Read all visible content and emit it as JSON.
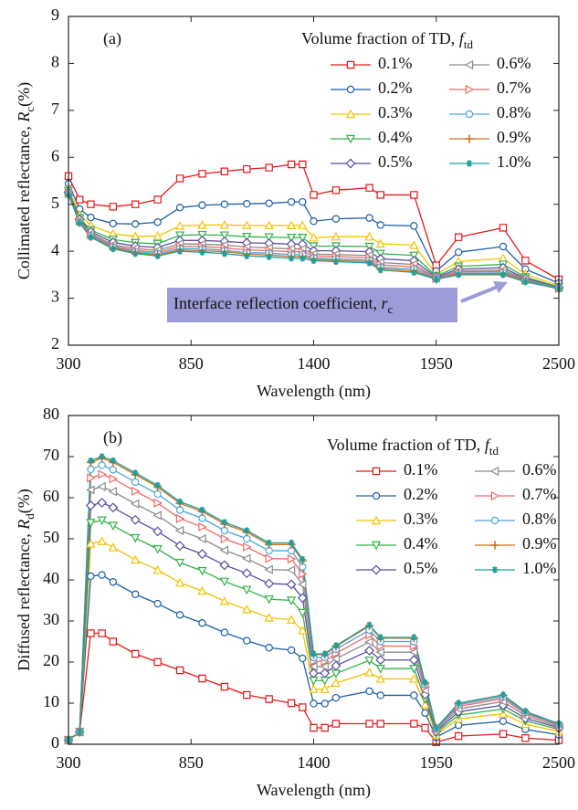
{
  "chart_data": [
    {
      "type": "line",
      "label": "(a)",
      "xlabel": "Wavelength (nm)",
      "ylabel": "Collimated reflectance, ",
      "ylabel_symbol": "R",
      "ylabel_subscript": "c",
      "ylabel_unit": "(%)",
      "legend_title": "Volume fraction of TD, ",
      "legend_symbol": "f",
      "legend_subscript": "td",
      "annotation": "Interface reflection coefficient, ",
      "annotation_symbol": "r",
      "annotation_subscript": "c",
      "xlim": [
        300,
        2500
      ],
      "xticks": [
        300,
        850,
        1400,
        1950,
        2500
      ],
      "ylim": [
        2,
        9
      ],
      "yticks": [
        2,
        3,
        4,
        5,
        6,
        7,
        8,
        9
      ],
      "x": [
        300,
        350,
        400,
        500,
        600,
        700,
        800,
        900,
        1000,
        1100,
        1200,
        1300,
        1350,
        1400,
        1500,
        1650,
        1700,
        1850,
        1950,
        2050,
        2250,
        2350,
        2500
      ],
      "series": [
        {
          "name": "0.1%",
          "color": "#e3191c",
          "marker": "square",
          "values": [
            5.6,
            5.1,
            5.0,
            4.95,
            5.0,
            5.1,
            5.55,
            5.65,
            5.7,
            5.75,
            5.78,
            5.85,
            5.85,
            5.2,
            5.3,
            5.35,
            5.2,
            5.2,
            3.7,
            4.3,
            4.5,
            3.8,
            3.4
          ]
        },
        {
          "name": "0.2%",
          "color": "#1f5fa6",
          "marker": "circle",
          "values": [
            5.44,
            4.9,
            4.72,
            4.59,
            4.58,
            4.62,
            4.93,
            4.98,
            5.0,
            5.01,
            5.02,
            5.05,
            5.05,
            4.64,
            4.69,
            4.71,
            4.56,
            4.54,
            3.58,
            3.98,
            4.1,
            3.62,
            3.32
          ]
        },
        {
          "name": "0.3%",
          "color": "#f2c200",
          "marker": "triangle-up",
          "values": [
            5.34,
            4.78,
            4.55,
            4.37,
            4.32,
            4.32,
            4.54,
            4.56,
            4.56,
            4.55,
            4.55,
            4.55,
            4.55,
            4.29,
            4.31,
            4.31,
            4.16,
            4.13,
            3.51,
            3.78,
            3.85,
            3.51,
            3.27
          ]
        },
        {
          "name": "0.4%",
          "color": "#33b24a",
          "marker": "triangle-down",
          "values": [
            5.29,
            4.71,
            4.45,
            4.25,
            4.18,
            4.16,
            4.34,
            4.35,
            4.34,
            4.31,
            4.3,
            4.29,
            4.29,
            4.11,
            4.11,
            4.1,
            3.95,
            3.91,
            3.47,
            3.68,
            3.72,
            3.45,
            3.24
          ]
        },
        {
          "name": "0.5%",
          "color": "#5b4ea0",
          "marker": "diamond",
          "values": [
            5.26,
            4.68,
            4.41,
            4.19,
            4.11,
            4.08,
            4.23,
            4.23,
            4.21,
            4.18,
            4.17,
            4.15,
            4.15,
            4.01,
            4.01,
            3.99,
            3.84,
            3.8,
            3.45,
            3.62,
            3.65,
            3.42,
            3.23
          ]
        },
        {
          "name": "0.6%",
          "color": "#8c8c8c",
          "marker": "triangle-left",
          "values": [
            5.24,
            4.65,
            4.37,
            4.14,
            4.06,
            4.02,
            4.16,
            4.15,
            4.13,
            4.09,
            4.07,
            4.05,
            4.05,
            3.94,
            3.93,
            3.91,
            3.76,
            3.72,
            3.43,
            3.58,
            3.6,
            3.4,
            3.22
          ]
        },
        {
          "name": "0.7%",
          "color": "#f06a6a",
          "marker": "triangle-right",
          "values": [
            5.23,
            4.64,
            4.35,
            4.11,
            4.02,
            3.98,
            4.11,
            4.1,
            4.07,
            4.03,
            4.01,
            3.99,
            3.99,
            3.9,
            3.89,
            3.86,
            3.71,
            3.67,
            3.42,
            3.56,
            3.57,
            3.38,
            3.21
          ]
        },
        {
          "name": "0.8%",
          "color": "#4ea6dc",
          "marker": "circle",
          "values": [
            5.22,
            4.62,
            4.33,
            4.09,
            3.99,
            3.95,
            4.06,
            4.05,
            4.02,
            3.97,
            3.96,
            3.93,
            3.93,
            3.86,
            3.84,
            3.81,
            3.66,
            3.62,
            3.41,
            3.53,
            3.54,
            3.37,
            3.21
          ]
        },
        {
          "name": "0.9%",
          "color": "#d0711c",
          "marker": "plus",
          "values": [
            5.21,
            4.61,
            4.31,
            4.07,
            3.97,
            3.92,
            4.03,
            4.01,
            3.99,
            3.94,
            3.92,
            3.89,
            3.89,
            3.83,
            3.81,
            3.78,
            3.63,
            3.58,
            3.4,
            3.52,
            3.52,
            3.36,
            3.2
          ]
        },
        {
          "name": "1.0%",
          "color": "#1f9e9a",
          "marker": "star",
          "values": [
            5.2,
            4.6,
            4.3,
            4.05,
            3.95,
            3.9,
            4.0,
            3.98,
            3.95,
            3.9,
            3.88,
            3.85,
            3.85,
            3.8,
            3.78,
            3.75,
            3.6,
            3.55,
            3.4,
            3.5,
            3.5,
            3.35,
            3.2
          ]
        }
      ]
    },
    {
      "type": "line",
      "label": "(b)",
      "xlabel": "Wavelength (nm)",
      "ylabel": "Diffused reflectance, ",
      "ylabel_symbol": "R",
      "ylabel_subscript": "d",
      "ylabel_unit": "(%)",
      "legend_title": "Volume fraction of TD, ",
      "legend_symbol": "f",
      "legend_subscript": "td",
      "xlim": [
        300,
        2500
      ],
      "xticks": [
        300,
        850,
        1400,
        1950,
        2500
      ],
      "ylim": [
        0,
        80
      ],
      "yticks": [
        0,
        10,
        20,
        30,
        40,
        50,
        60,
        70,
        80
      ],
      "x": [
        300,
        350,
        400,
        450,
        500,
        600,
        700,
        800,
        900,
        1000,
        1100,
        1200,
        1300,
        1350,
        1400,
        1450,
        1500,
        1650,
        1700,
        1850,
        1900,
        1950,
        2050,
        2250,
        2350,
        2500
      ],
      "series": [
        {
          "name": "0.1%",
          "color": "#e3191c",
          "marker": "square",
          "values": [
            1,
            3,
            27,
            27,
            25,
            22,
            20,
            18,
            16,
            14,
            12,
            11,
            10,
            9,
            4,
            4,
            5,
            5,
            5,
            5,
            4,
            0.5,
            2,
            2.5,
            1.5,
            1
          ]
        },
        {
          "name": "0.2%",
          "color": "#1f5fa6",
          "marker": "circle",
          "values": [
            1,
            3,
            40.9,
            41.2,
            39.5,
            36.5,
            34.2,
            31.5,
            29.5,
            27.2,
            25.2,
            23.5,
            22.9,
            20.9,
            9.9,
            9.9,
            11.3,
            12.9,
            11.9,
            11.9,
            7.6,
            1.7,
            4.6,
            5.6,
            3.6,
            2.3
          ]
        },
        {
          "name": "0.3%",
          "color": "#f2c200",
          "marker": "triangle-up",
          "values": [
            1,
            3,
            48.8,
            49.4,
            47.9,
            44.9,
            42.4,
            39.3,
            37.3,
            34.8,
            32.8,
            30.8,
            30.3,
            27.7,
            13.4,
            13.4,
            14.9,
            17.5,
            15.9,
            15.9,
            9.7,
            2.3,
            6.2,
            7.4,
            4.9,
            3.1
          ]
        },
        {
          "name": "0.4%",
          "color": "#33b24a",
          "marker": "triangle-down",
          "values": [
            1,
            3,
            53.9,
            54.5,
            53.2,
            50.2,
            47.5,
            44.2,
            42.2,
            39.6,
            37.6,
            35.3,
            35,
            32,
            15.5,
            15.5,
            17.2,
            20.4,
            18.4,
            18.4,
            11,
            2.7,
            7.1,
            8.6,
            5.7,
            3.6
          ]
        },
        {
          "name": "0.5%",
          "color": "#5b4ea0",
          "marker": "diamond",
          "values": [
            1,
            3,
            58.1,
            58.8,
            57.6,
            54.6,
            51.8,
            48.3,
            46.3,
            43.6,
            41.6,
            39.1,
            38.9,
            35.6,
            17.3,
            17.3,
            19.1,
            22.8,
            20.5,
            20.5,
            12.1,
            3.1,
            7.9,
            9.5,
            6.3,
            4
          ]
        },
        {
          "name": "0.6%",
          "color": "#8c8c8c",
          "marker": "triangle-left",
          "values": [
            1,
            3,
            61.9,
            62.7,
            61.5,
            58.5,
            55.7,
            52,
            50,
            47.2,
            45.2,
            42.5,
            42.4,
            38.9,
            18.9,
            18.9,
            20.8,
            24.9,
            22.4,
            22.4,
            13.1,
            3.4,
            8.6,
            10.4,
            6.9,
            4.3
          ]
        },
        {
          "name": "0.7%",
          "color": "#f06a6a",
          "marker": "triangle-right",
          "values": [
            1,
            3,
            64.8,
            65.7,
            64.6,
            61.6,
            58.7,
            54.9,
            52.9,
            50,
            48,
            45.2,
            45.1,
            41.4,
            20.2,
            20.2,
            22.1,
            26.6,
            23.9,
            23.9,
            13.9,
            3.7,
            9.2,
            11.1,
            7.4,
            4.6
          ]
        },
        {
          "name": "0.8%",
          "color": "#4ea6dc",
          "marker": "circle",
          "values": [
            1,
            3,
            66.9,
            67.9,
            66.8,
            63.8,
            60.9,
            57,
            55,
            52,
            50,
            47.1,
            47.1,
            43.2,
            21.1,
            21.1,
            23.1,
            27.8,
            25,
            25,
            14.5,
            3.8,
            9.6,
            11.5,
            7.7,
            4.8
          ]
        },
        {
          "name": "0.9%",
          "color": "#d0711c",
          "marker": "plus",
          "values": [
            1,
            3,
            68.6,
            69.6,
            68.6,
            65.6,
            62.6,
            58.6,
            56.6,
            53.6,
            51.6,
            48.6,
            48.6,
            44.6,
            21.8,
            21.8,
            23.8,
            28.8,
            25.8,
            25.8,
            14.9,
            4,
            9.9,
            11.9,
            7.9,
            5
          ]
        },
        {
          "name": "1.0%",
          "color": "#1f9e9a",
          "marker": "star",
          "values": [
            1,
            3,
            69,
            70,
            69,
            66,
            63,
            59,
            57,
            54,
            52,
            49,
            49,
            45,
            22,
            22,
            24,
            29,
            26,
            26,
            15,
            4,
            10,
            12,
            8,
            5
          ]
        }
      ]
    }
  ]
}
